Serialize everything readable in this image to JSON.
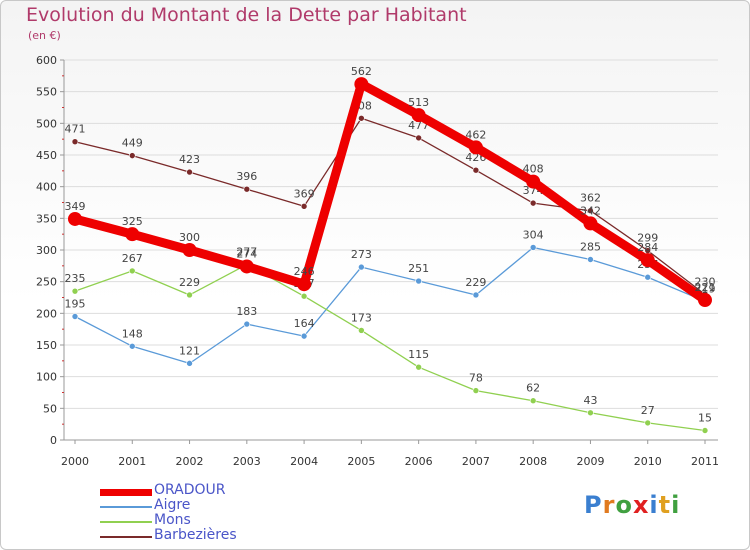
{
  "title": "Evolution du Montant de la Dette par Habitant",
  "unit": "(en €)",
  "brand": {
    "letters": [
      "P",
      "r",
      "o",
      "x",
      "i",
      "t",
      "i"
    ],
    "colors": [
      "#3a7fd0",
      "#e07a20",
      "#40a040",
      "#e02020",
      "#3a7fd0",
      "#e0a020",
      "#40a040"
    ]
  },
  "chart_data": {
    "type": "line",
    "title": "Evolution du Montant de la Dette par Habitant",
    "ylabel": "(en €)",
    "xlabel": "",
    "x": [
      "2000",
      "2001",
      "2002",
      "2003",
      "2004",
      "2005",
      "2006",
      "2007",
      "2008",
      "2009",
      "2010",
      "2011"
    ],
    "ylim": [
      0,
      600
    ],
    "yticks": [
      "0",
      "50",
      "100",
      "150",
      "200",
      "250",
      "300",
      "350",
      "400",
      "450",
      "500",
      "550",
      "600"
    ],
    "grid": "horizontal",
    "legend": "bottom-left",
    "series": [
      {
        "name": "Barbezières",
        "color": "#7a2a2a",
        "values": [
          471,
          449,
          423,
          396,
          369,
          508,
          477,
          426,
          374,
          362,
          299,
          230
        ]
      },
      {
        "name": "Aigre",
        "color": "#5a9ad8",
        "values": [
          195,
          148,
          121,
          183,
          164,
          273,
          251,
          229,
          304,
          285,
          257,
          219
        ]
      },
      {
        "name": "Mons",
        "color": "#90d050",
        "values": [
          235,
          267,
          229,
          277,
          227,
          173,
          115,
          78,
          62,
          43,
          27,
          15
        ]
      },
      {
        "name": "ORADOUR",
        "color": "#ee0000",
        "values": [
          349,
          325,
          300,
          274,
          246,
          562,
          513,
          462,
          408,
          342,
          284,
          221
        ]
      }
    ],
    "legend_order": [
      3,
      1,
      2,
      0
    ]
  }
}
